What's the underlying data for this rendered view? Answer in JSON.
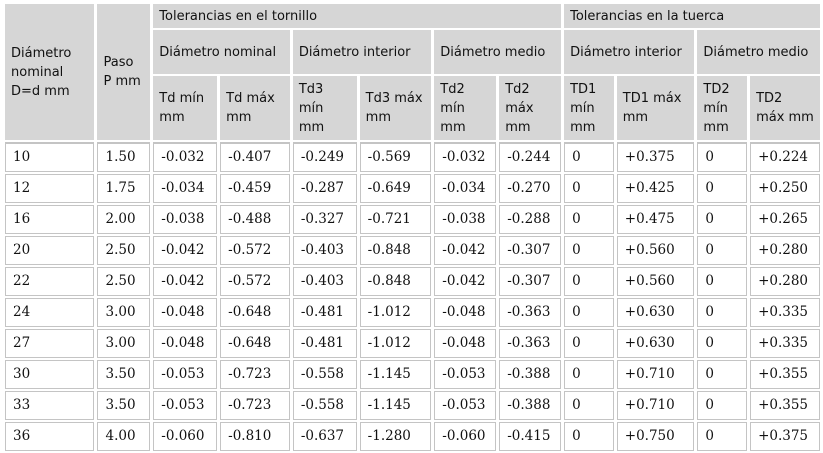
{
  "headers": {
    "diametro_nominal": "Diámetro nominal D=d mm",
    "paso": "Paso P mm",
    "tornillo_group": "Tolerancias en el tornillo",
    "tuerca_group": "Tolerancias en la tuerca",
    "t_diam_nominal": "Diámetro nominal",
    "t_diam_interior": "Diámetro interior",
    "t_diam_medio": "Diámetro medio",
    "n_diam_interior": "Diámetro interior",
    "n_diam_medio": "Diámetro medio",
    "td_min": "Td mín mm",
    "td_max": "Td máx mm",
    "td3_min": "Td3 mín mm",
    "td3_max": "Td3 máx mm",
    "td2_min": "Td2 mín mm",
    "td2_max": "Td2 máx mm",
    "TD1_min": "TD1 mín mm",
    "TD1_max": "TD1 máx mm",
    "TD2_min": "TD2 mín mm",
    "TD2_max": "TD2 máx mm"
  },
  "rows": [
    [
      "10",
      "1.50",
      "-0.032",
      "-0.407",
      "-0.249",
      "-0.569",
      "-0.032",
      "-0.244",
      "0",
      "+0.375",
      "0",
      "+0.224"
    ],
    [
      "12",
      "1.75",
      "-0.034",
      "-0.459",
      "-0.287",
      "-0.649",
      "-0.034",
      "-0.270",
      "0",
      "+0.425",
      "0",
      "+0.250"
    ],
    [
      "16",
      "2.00",
      "-0.038",
      "-0.488",
      "-0.327",
      "-0.721",
      "-0.038",
      "-0.288",
      "0",
      "+0.475",
      "0",
      "+0.265"
    ],
    [
      "20",
      "2.50",
      "-0.042",
      "-0.572",
      "-0.403",
      "-0.848",
      "-0.042",
      "-0.307",
      "0",
      "+0.560",
      "0",
      "+0.280"
    ],
    [
      "22",
      "2.50",
      "-0.042",
      "-0.572",
      "-0.403",
      "-0.848",
      "-0.042",
      "-0.307",
      "0",
      "+0.560",
      "0",
      "+0.280"
    ],
    [
      "24",
      "3.00",
      "-0.048",
      "-0.648",
      "-0.481",
      "-1.012",
      "-0.048",
      "-0.363",
      "0",
      "+0.630",
      "0",
      "+0.335"
    ],
    [
      "27",
      "3.00",
      "-0.048",
      "-0.648",
      "-0.481",
      "-1.012",
      "-0.048",
      "-0.363",
      "0",
      "+0.630",
      "0",
      "+0.335"
    ],
    [
      "30",
      "3.50",
      "-0.053",
      "-0.723",
      "-0.558",
      "-1.145",
      "-0.053",
      "-0.388",
      "0",
      "+0.710",
      "0",
      "+0.355"
    ],
    [
      "33",
      "3.50",
      "-0.053",
      "-0.723",
      "-0.558",
      "-1.145",
      "-0.053",
      "-0.388",
      "0",
      "+0.710",
      "0",
      "+0.355"
    ],
    [
      "36",
      "4.00",
      "-0.060",
      "-0.810",
      "-0.637",
      "-1.280",
      "-0.060",
      "-0.415",
      "0",
      "+0.750",
      "0",
      "+0.375"
    ]
  ]
}
